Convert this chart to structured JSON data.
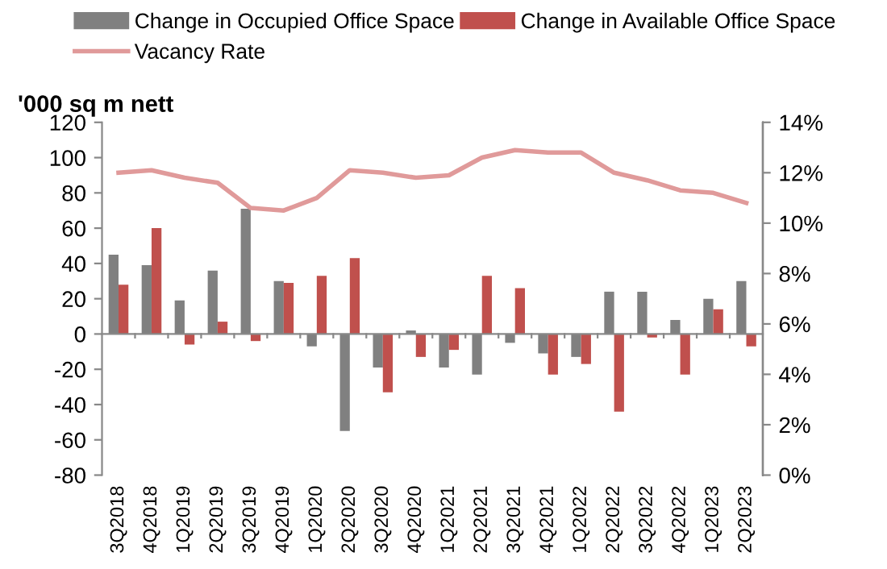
{
  "chart_data": {
    "type": "bar",
    "ylabel": "'000 sq m nett",
    "categories": [
      "3Q2018",
      "4Q2018",
      "1Q2019",
      "2Q2019",
      "3Q2019",
      "4Q2019",
      "1Q2020",
      "2Q2020",
      "3Q2020",
      "4Q2020",
      "1Q2021",
      "2Q2021",
      "3Q2021",
      "4Q2021",
      "1Q2022",
      "2Q2022",
      "3Q2022",
      "4Q2022",
      "1Q2023",
      "2Q2023"
    ],
    "series": [
      {
        "name": "Change in Occupied Office Space",
        "color": "#808080",
        "values": [
          45,
          39,
          19,
          36,
          71,
          30,
          -7,
          -55,
          -19,
          2,
          -19,
          -23,
          -5,
          -11,
          -13,
          24,
          24,
          8,
          20,
          30
        ]
      },
      {
        "name": "Change in Available Office Space",
        "color": "#c0504d",
        "values": [
          28,
          60,
          -6,
          7,
          -4,
          29,
          33,
          43,
          -33,
          -13,
          -9,
          33,
          26,
          -23,
          -17,
          -44,
          -2,
          -23,
          14,
          -7
        ]
      },
      {
        "name": "Vacancy Rate",
        "type": "line",
        "axis": "y2",
        "color": "#e09a9a",
        "values": [
          12.0,
          12.1,
          11.8,
          11.6,
          10.6,
          10.5,
          11.0,
          12.1,
          12.0,
          11.8,
          11.9,
          12.6,
          12.9,
          12.8,
          12.8,
          12.0,
          11.7,
          11.3,
          11.2,
          10.8
        ]
      }
    ],
    "ylim": [
      -80,
      120
    ],
    "yticks": [
      -80,
      -60,
      -40,
      -20,
      0,
      20,
      40,
      60,
      80,
      100,
      120
    ],
    "y2lim": [
      0,
      14
    ],
    "y2ticks": [
      {
        "value": 0,
        "label": "0%"
      },
      {
        "value": 2,
        "label": "2%"
      },
      {
        "value": 4,
        "label": "4%"
      },
      {
        "value": 6,
        "label": "6%"
      },
      {
        "value": 8,
        "label": "8%"
      },
      {
        "value": 10,
        "label": "10%"
      },
      {
        "value": 12,
        "label": "12%"
      },
      {
        "value": 14,
        "label": "14%"
      }
    ],
    "legend": "top"
  }
}
